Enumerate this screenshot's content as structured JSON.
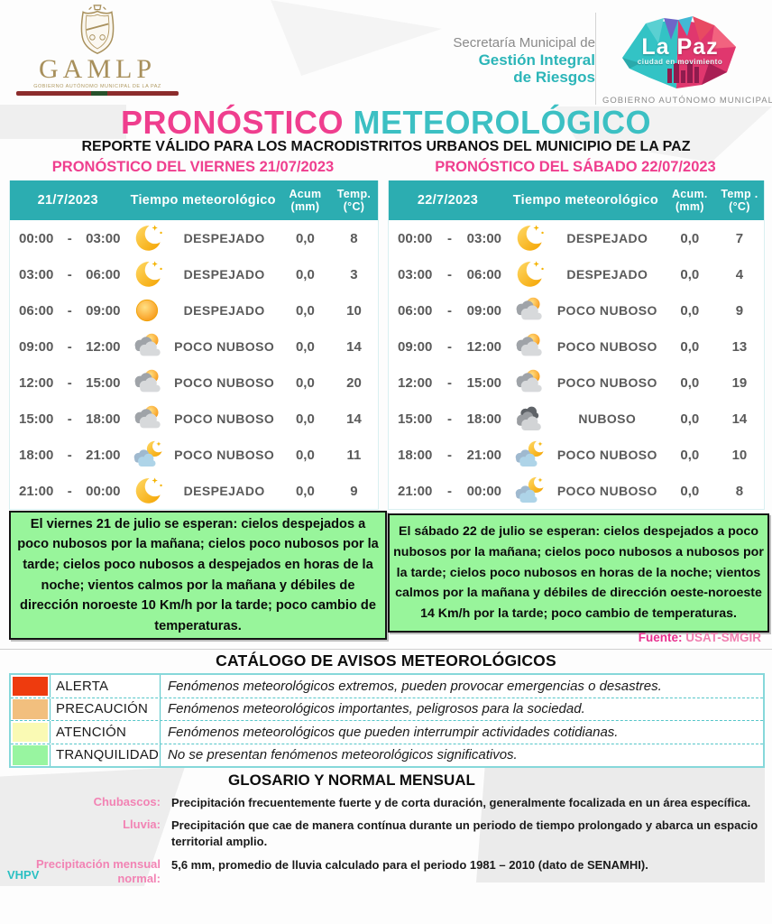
{
  "header": {
    "gamlp_word": "GAMLP",
    "gamlp_tiny": "GOBIERNO AUTÓNOMO MUNICIPAL DE LA PAZ",
    "secretaria_line1": "Secretaría Municipal de",
    "secretaria_line2": "Gestión Integral",
    "secretaria_line3": "de Riesgos",
    "lapaz_title": "La Paz",
    "lapaz_tagline": "ciudad en movimiento",
    "lapaz_footer": "GOBIERNO AUTÓNOMO MUNICIPAL"
  },
  "title": {
    "part1": "PRONÓSTICO",
    "part2": "METEOROLÓGICO"
  },
  "subtitle": "REPORTE VÁLIDO PARA LOS MACRODISTRITOS URBANOS DEL MUNICIPIO DE LA PAZ",
  "forecasts": [
    {
      "section_title": "PRONÓSTICO DEL VIERNES 21/07/2023",
      "columns": {
        "date": "21/7/2023",
        "weather": "Tiempo meteorológico",
        "acum1": "Acum",
        "acum2": "(mm)",
        "temp1": "Temp.",
        "temp2": "(°C)"
      },
      "rows": [
        {
          "from": "00:00",
          "to": "03:00",
          "icon": "moon-stars",
          "condition": "DESPEJADO",
          "acum": "0,0",
          "temp": "8"
        },
        {
          "from": "03:00",
          "to": "06:00",
          "icon": "moon-stars",
          "condition": "DESPEJADO",
          "acum": "0,0",
          "temp": "3"
        },
        {
          "from": "06:00",
          "to": "09:00",
          "icon": "sun",
          "condition": "DESPEJADO",
          "acum": "0,0",
          "temp": "10"
        },
        {
          "from": "09:00",
          "to": "12:00",
          "icon": "sun-cloud",
          "condition": "POCO NUBOSO",
          "acum": "0,0",
          "temp": "14"
        },
        {
          "from": "12:00",
          "to": "15:00",
          "icon": "sun-cloud",
          "condition": "POCO NUBOSO",
          "acum": "0,0",
          "temp": "20"
        },
        {
          "from": "15:00",
          "to": "18:00",
          "icon": "sun-cloud",
          "condition": "POCO NUBOSO",
          "acum": "0,0",
          "temp": "14"
        },
        {
          "from": "18:00",
          "to": "21:00",
          "icon": "moon-cloud",
          "condition": "POCO NUBOSO",
          "acum": "0,0",
          "temp": "11"
        },
        {
          "from": "21:00",
          "to": "00:00",
          "icon": "moon-stars",
          "condition": "DESPEJADO",
          "acum": "0,0",
          "temp": "9"
        }
      ],
      "summary": "El viernes 21 de julio se esperan: cielos despejados a poco nubosos por la mañana; cielos poco nubosos por la tarde; cielos poco nubosos a despejados en horas de la noche; vientos calmos por la mañana y débiles de dirección noroeste 10 Km/h por la tarde; poco cambio de temperaturas."
    },
    {
      "section_title": "PRONÓSTICO DEL SÁBADO 22/07/2023",
      "columns": {
        "date": "22/7/2023",
        "weather": "Tiempo meteorológico",
        "acum1": "Acum.",
        "acum2": "(mm)",
        "temp1": "Temp .",
        "temp2": "(°C)"
      },
      "rows": [
        {
          "from": "00:00",
          "to": "03:00",
          "icon": "moon-stars",
          "condition": "DESPEJADO",
          "acum": "0,0",
          "temp": "7"
        },
        {
          "from": "03:00",
          "to": "06:00",
          "icon": "moon-stars",
          "condition": "DESPEJADO",
          "acum": "0,0",
          "temp": "4"
        },
        {
          "from": "06:00",
          "to": "09:00",
          "icon": "sun-cloud",
          "condition": "POCO NUBOSO",
          "acum": "0,0",
          "temp": "9"
        },
        {
          "from": "09:00",
          "to": "12:00",
          "icon": "sun-cloud",
          "condition": "POCO NUBOSO",
          "acum": "0,0",
          "temp": "13"
        },
        {
          "from": "12:00",
          "to": "15:00",
          "icon": "sun-cloud",
          "condition": "POCO NUBOSO",
          "acum": "0,0",
          "temp": "19"
        },
        {
          "from": "15:00",
          "to": "18:00",
          "icon": "dark-cloud",
          "condition": "NUBOSO",
          "acum": "0,0",
          "temp": "14"
        },
        {
          "from": "18:00",
          "to": "21:00",
          "icon": "moon-cloud",
          "condition": "POCO NUBOSO",
          "acum": "0,0",
          "temp": "10"
        },
        {
          "from": "21:00",
          "to": "00:00",
          "icon": "moon-cloud",
          "condition": "POCO NUBOSO",
          "acum": "0,0",
          "temp": "8"
        }
      ],
      "summary": "El sábado 22 de julio se esperan: cielos despejados a poco nubosos por la mañana; cielos poco nubosos a nubosos por la tarde; cielos poco nubosos en horas de la noche; vientos calmos por la mañana y débiles de dirección oeste-noroeste 14 Km/h por la tarde; poco cambio de temperaturas."
    }
  ],
  "fuente": {
    "label": "Fuente:",
    "value": "USAT-SMGIR"
  },
  "catalog": {
    "title": "CATÁLOGO DE AVISOS METEOROLÓGICOS",
    "rows": [
      {
        "color": "#ee3b0e",
        "label": "ALERTA",
        "description": "Fenómenos meteorológicos extremos, pueden provocar emergencias o desastres."
      },
      {
        "color": "#f2bf7e",
        "label": "PRECAUCIÓN",
        "description": "Fenómenos meteorológicos importantes, peligrosos para la sociedad."
      },
      {
        "color": "#fafab4",
        "label": "ATENCIÓN",
        "description": "Fenómenos meteorológicos que pueden interrumpir actividades cotidianas."
      },
      {
        "color": "#98f5a0",
        "label": "TRANQUILIDAD",
        "description": "No se presentan fenómenos meteorológicos significativos."
      }
    ]
  },
  "glossary": {
    "title": "GLOSARIO Y NORMAL MENSUAL",
    "entries": [
      {
        "term": "Chubascos:",
        "definition": "Precipitación frecuentemente fuerte y de corta duración, generalmente focalizada en un área específica."
      },
      {
        "term": "Lluvia:",
        "definition": "Precipitación que cae de manera contínua durante un periodo de tiempo prolongado y abarca un espacio territorial amplio."
      },
      {
        "term": "Precipitación mensual normal:",
        "definition": "5,6 mm, promedio de lluvia calculado para el periodo 1981 – 2010 (dato de SENAMHI)."
      }
    ]
  },
  "footer": {
    "initials": "VHPV"
  },
  "colors": {
    "accent_pink": "#ef3e8e",
    "accent_teal": "#3cc0c3",
    "table_header_teal": "#2cadb1",
    "summary_green": "#98f59b",
    "catalog_border_teal": "#86d8da"
  }
}
